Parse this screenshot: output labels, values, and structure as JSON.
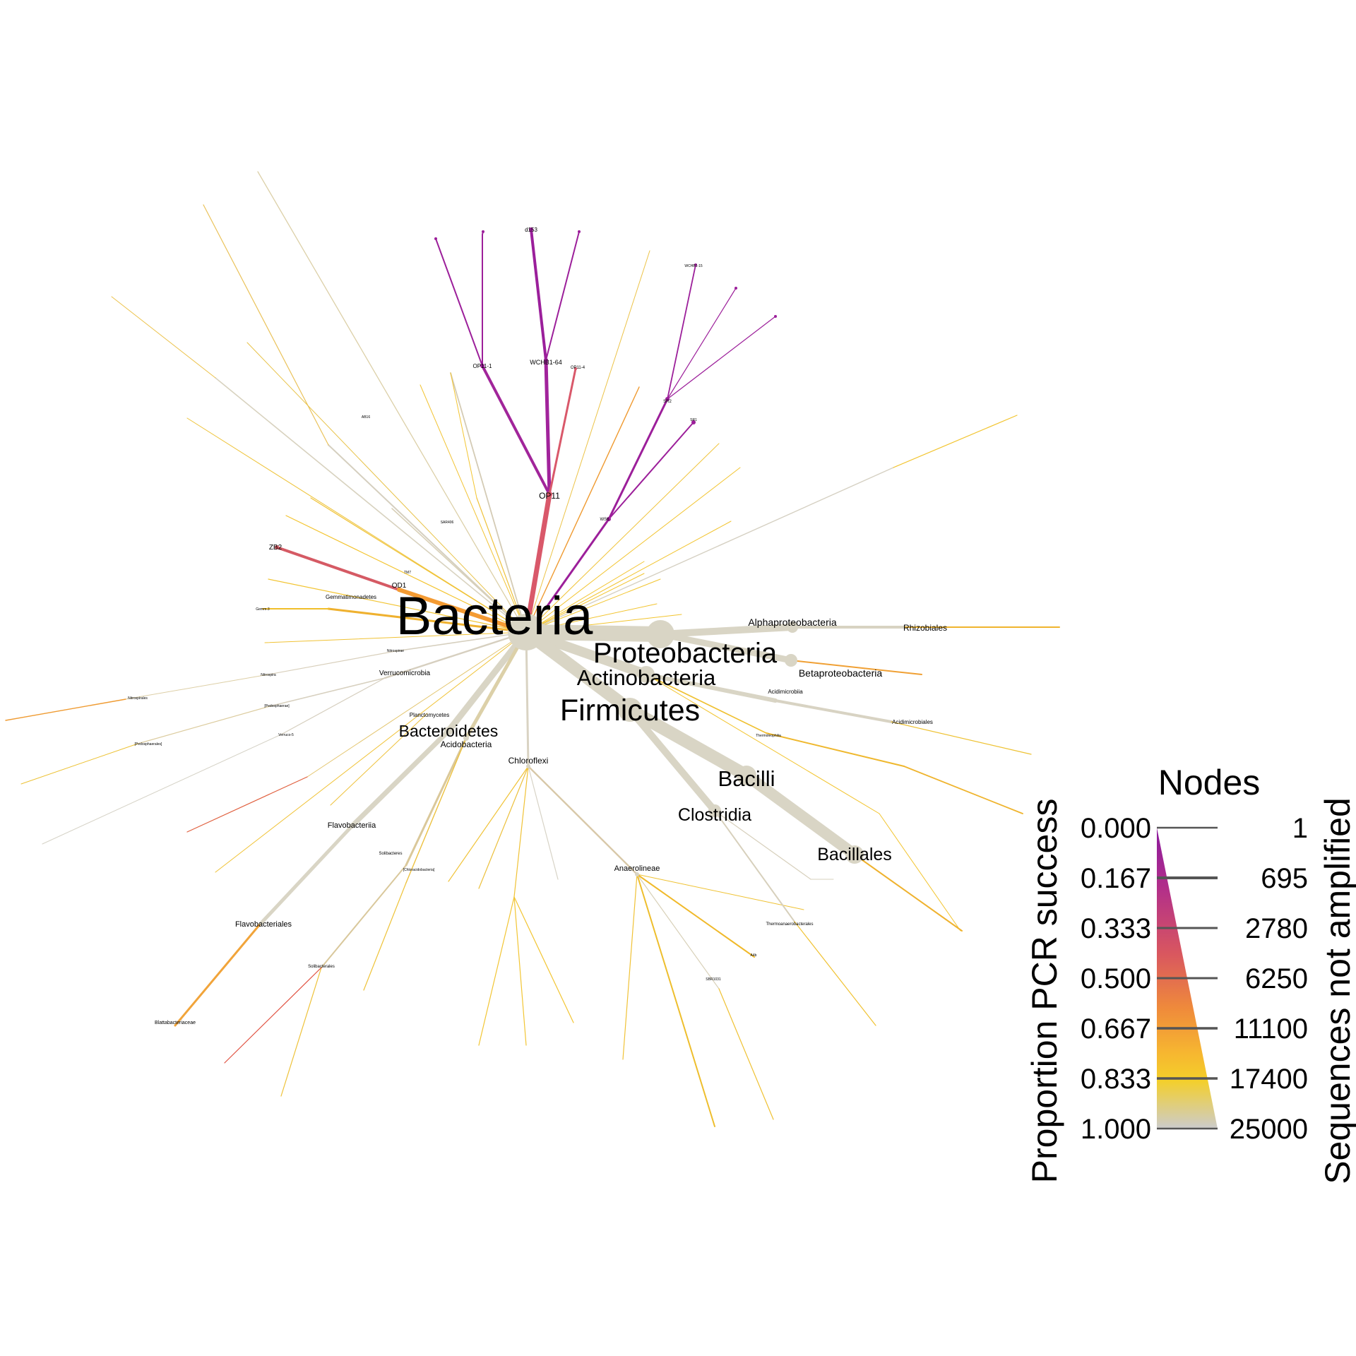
{
  "figure": {
    "root_label": "Bacteria",
    "legend": {
      "nodes_title": "Nodes",
      "color_title": "Proportion PCR success",
      "size_title": "Sequences not amplified",
      "color_ticks": [
        "0.000",
        "0.167",
        "0.333",
        "0.500",
        "0.667",
        "0.833",
        "1.000"
      ],
      "size_ticks": [
        "1",
        "695",
        "2780",
        "6250",
        "11100",
        "17400",
        "25000"
      ],
      "gradient_colors": [
        "#8b1a9e",
        "#b22f8a",
        "#d9575f",
        "#ef8a3b",
        "#f6b431",
        "#f4cf2a",
        "#cccccc"
      ]
    },
    "labels": {
      "d153": "d153",
      "op11_1": "OP11-1",
      "wchb1_64": "WCHB1-64",
      "op11_4": "OP11-4",
      "op11": "OP11",
      "wchb1_15": "WCHB1-15",
      "sr2": "SR2",
      "sr1b": "SR1",
      "ws6": "WS6",
      "ab16": "AB16",
      "sar406": "SAR406",
      "tm7": "TM7",
      "zb2": "ZB2",
      "od1": "OD1",
      "gemmatimonadetes": "Gemmatimonadetes",
      "gemm3": "Gemm-3",
      "nitrospirae": "Nitrospirae",
      "nitrospira": "Nitrospira",
      "verrucomicrobia": "Verrucomicrobia",
      "nitrospirales": "Nitrospirales",
      "pedosphaerae": "[Pedosphaerae]",
      "pedosphaerales": "[Pedosphaerales]",
      "verruco5": "Verruco-5",
      "planctomycetes": "Planctomycetes",
      "bacteroidetes": "Bacteroidetes",
      "acidobacteria": "Acidobacteria",
      "chloroflexi": "Chloroflexi",
      "flavobacteriia": "Flavobacteriia",
      "solibacteres": "Solibacteres",
      "chloracidobacteria": "[Chloracidobacteria]",
      "flavobacteriales": "Flavobacteriales",
      "solibacterales": "Solibacterales",
      "blattabacteriaceae": "Blattabacteriaceae",
      "anaerolineae": "Anaerolineae",
      "sbr1031": "SBR1031",
      "a4b": "A4b",
      "proteobacteria": "Proteobacteria",
      "actinobacteria": "Actinobacteria",
      "firmicutes": "Firmicutes",
      "alphaproteobacteria": "Alphaproteobacteria",
      "rhizobiales": "Rhizobiales",
      "betaproteobacteria": "Betaproteobacteria",
      "acidimicrobiia": "Acidimicrobiia",
      "acidimicrobiales": "Acidimicrobiales",
      "thermoleophilia": "Thermoleophilia",
      "bacilli": "Bacilli",
      "clostridia": "Clostridia",
      "bacillales": "Bacillales",
      "thermoanaerobacterales": "Thermoanaerobacterales"
    }
  }
}
